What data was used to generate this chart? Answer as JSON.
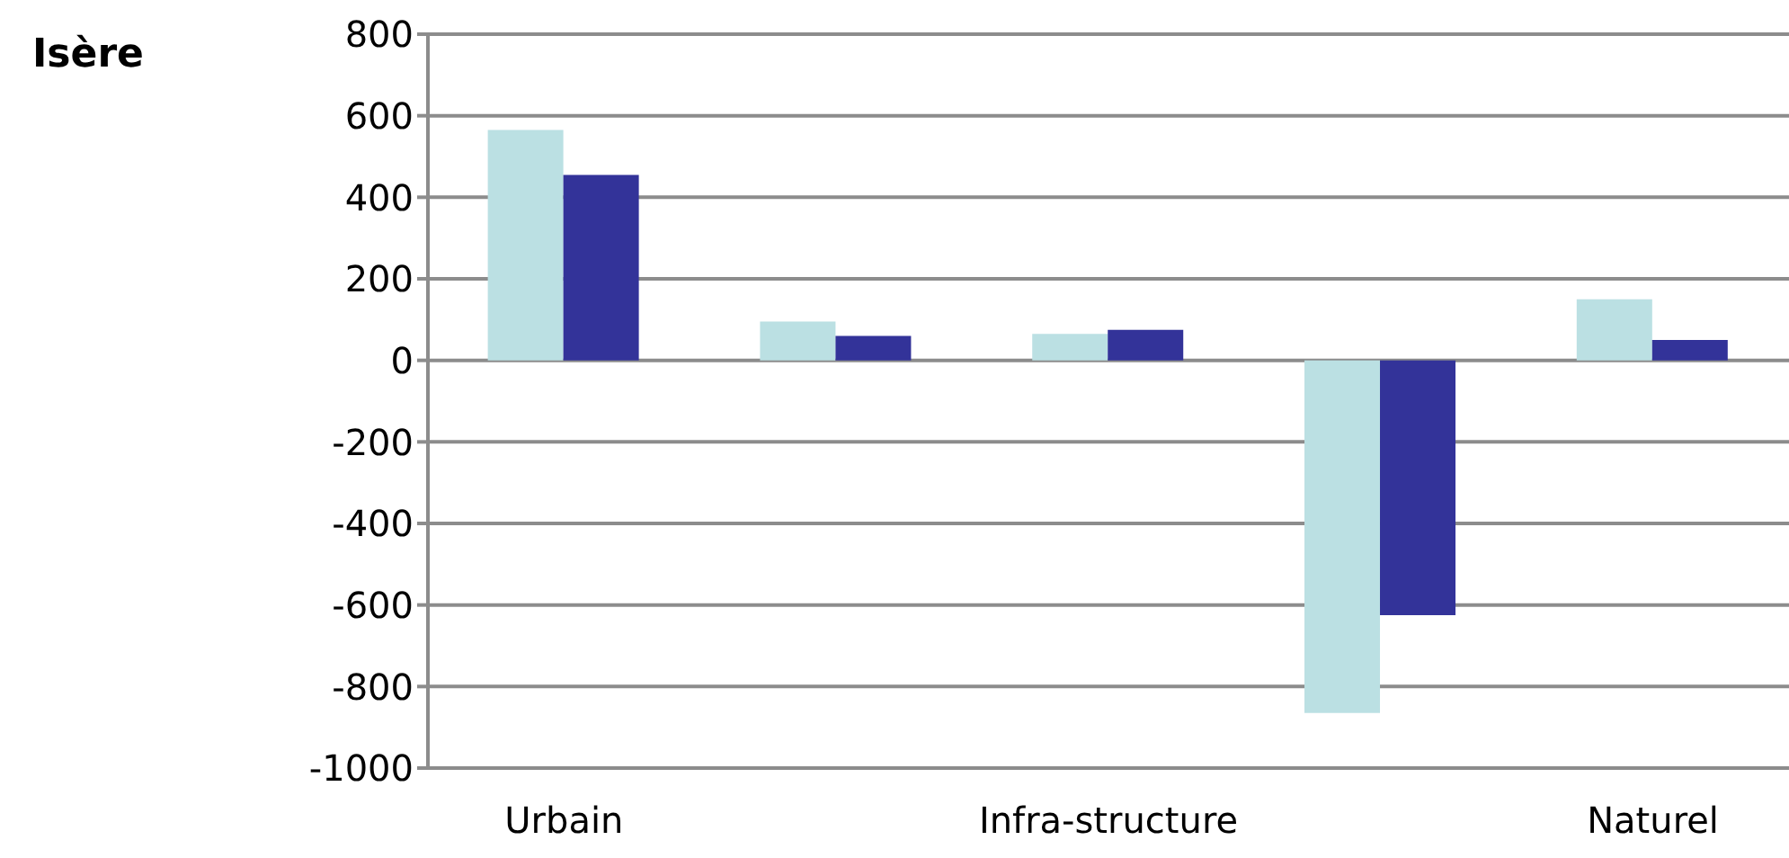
{
  "chart_data": {
    "type": "bar",
    "title": "Isère",
    "categories": [
      "Urbain",
      null,
      "Infra-structure",
      null,
      "Naturel"
    ],
    "series": [
      {
        "color": "#bbe0e3",
        "values": [
          565,
          95,
          65,
          -865,
          150
        ]
      },
      {
        "color": "#333399",
        "values": [
          455,
          60,
          75,
          -625,
          50
        ]
      }
    ],
    "ylim": [
      -1000,
      800
    ],
    "yticks": [
      -1000,
      -800,
      -600,
      -400,
      -200,
      0,
      200,
      400,
      600,
      800
    ],
    "grid": "y",
    "legend": false
  }
}
